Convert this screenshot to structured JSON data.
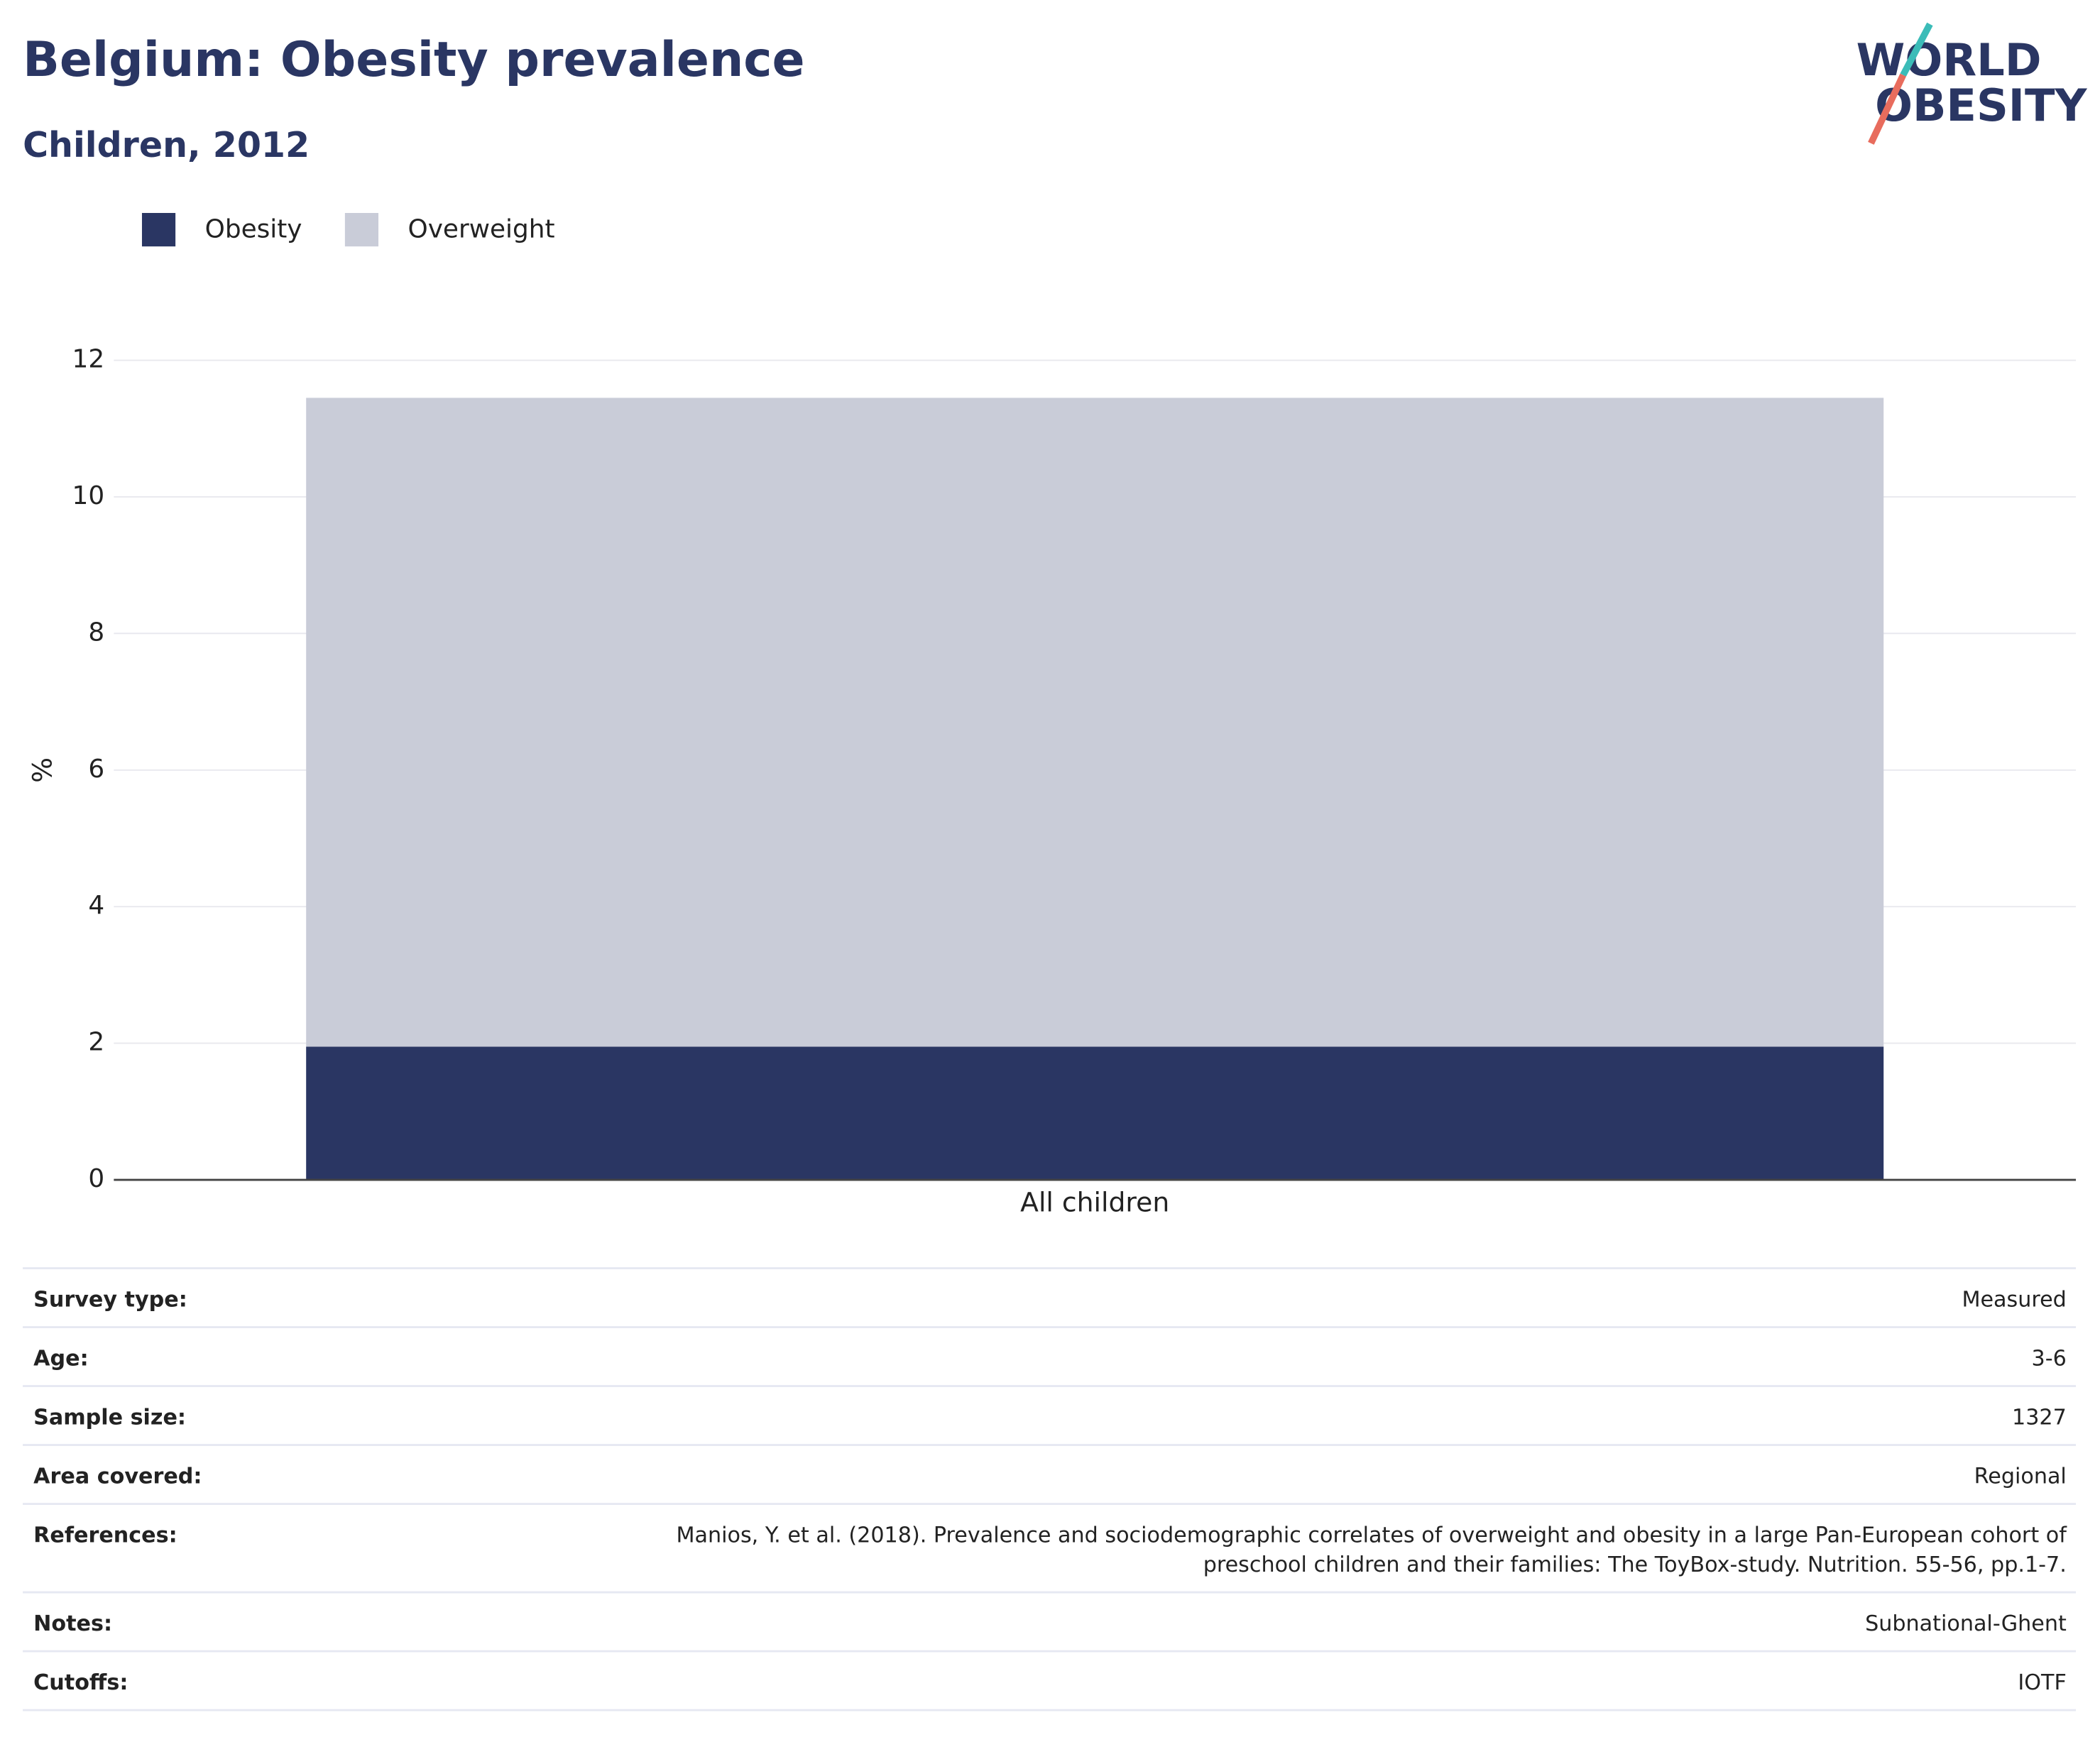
{
  "chart_data": {
    "type": "stacked_bar",
    "title": "Belgium: Obesity prevalence",
    "subtitle": "Children, 2012",
    "y_label": "%",
    "categories": [
      "All children"
    ],
    "series": [
      {
        "name": "Obesity",
        "color": "#2a3663",
        "values": [
          1.95
        ]
      },
      {
        "name": "Overweight",
        "color": "#c9ccd8",
        "values": [
          9.5
        ]
      }
    ],
    "ylim": [
      0,
      12
    ],
    "yticks": [
      0,
      2,
      4,
      6,
      8,
      10,
      12
    ],
    "grid": true
  },
  "logo": {
    "line1": "WORLD",
    "line2": "OBESITY"
  },
  "table": {
    "rows": [
      {
        "label": "Survey type:",
        "value": [
          "Measured"
        ]
      },
      {
        "label": "Age:",
        "value": [
          "3-6"
        ]
      },
      {
        "label": "Sample size:",
        "value": [
          "1327"
        ]
      },
      {
        "label": "Area covered:",
        "value": [
          "Regional"
        ]
      },
      {
        "label": "References:",
        "value": [
          "Manios, Y. et al. (2018). Prevalence and sociodemographic correlates of overweight and obesity in a large Pan-European cohort of",
          "preschool children and their families: The ToyBox-study. Nutrition. 55-56, pp.1-7."
        ]
      },
      {
        "label": "Notes:",
        "value": [
          "Subnational-Ghent"
        ]
      },
      {
        "label": "Cutoffs:",
        "value": [
          "IOTF"
        ]
      }
    ]
  }
}
